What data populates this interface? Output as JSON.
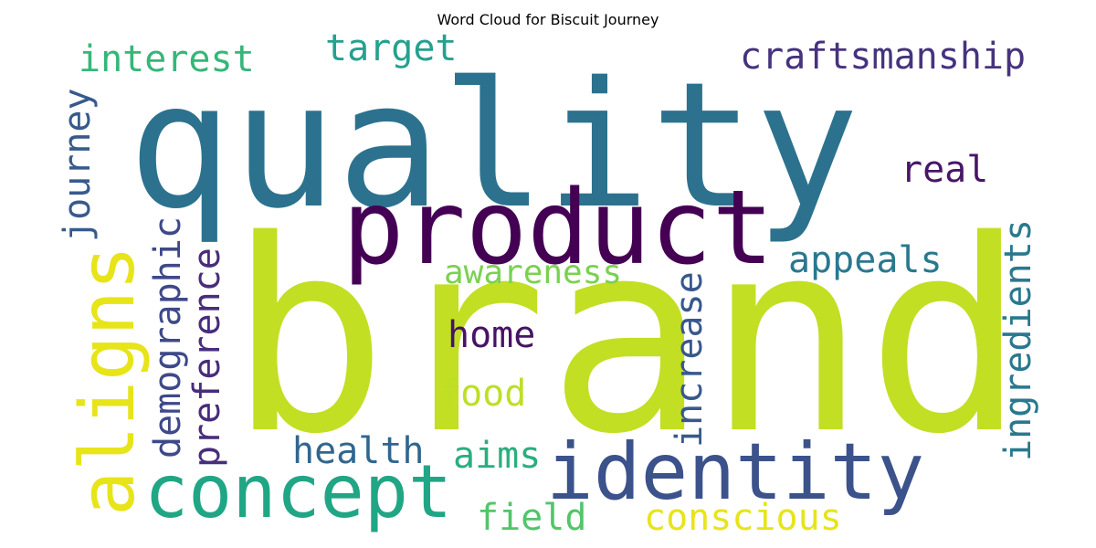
{
  "chart_data": {
    "type": "wordcloud",
    "title": "Word Cloud for Biscuit Journey",
    "words": [
      {
        "text": "brand",
        "color": "#c2df23"
      },
      {
        "text": "quality",
        "color": "#2c728e"
      },
      {
        "text": "product",
        "color": "#440154"
      },
      {
        "text": "identity",
        "color": "#3b528b"
      },
      {
        "text": "concept",
        "color": "#21a685"
      },
      {
        "text": "aligns",
        "color": "#e7e419"
      },
      {
        "text": "craftsmanship",
        "color": "#46337e"
      },
      {
        "text": "interest",
        "color": "#35b779"
      },
      {
        "text": "target",
        "color": "#25a18e"
      },
      {
        "text": "real",
        "color": "#481668"
      },
      {
        "text": "appeals",
        "color": "#2a788e"
      },
      {
        "text": "awareness",
        "color": "#7ad151"
      },
      {
        "text": "home",
        "color": "#471365"
      },
      {
        "text": "food",
        "color": "#bddf26"
      },
      {
        "text": "health",
        "color": "#31668e"
      },
      {
        "text": "aims",
        "color": "#29af7f"
      },
      {
        "text": "field",
        "color": "#52c569"
      },
      {
        "text": "conscious",
        "color": "#e7e419"
      },
      {
        "text": "journey",
        "color": "#375a8c"
      },
      {
        "text": "demographic",
        "color": "#3e4989"
      },
      {
        "text": "preference",
        "color": "#472d7b"
      },
      {
        "text": "increase",
        "color": "#38588c"
      },
      {
        "text": "ingredients",
        "color": "#2a788e"
      }
    ]
  }
}
